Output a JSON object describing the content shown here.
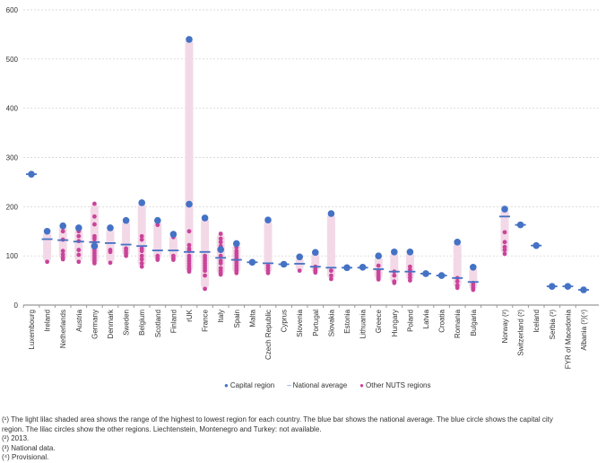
{
  "chart_data": {
    "type": "scatter",
    "title": "",
    "ylim": [
      0,
      600
    ],
    "yticks": [
      0,
      100,
      200,
      300,
      400,
      500,
      600
    ],
    "grid": true,
    "legend_position": "bottom",
    "colors": {
      "capital": "#4472c4",
      "national": "#4472c4",
      "other": "#c9449a",
      "range": "#f3d9e7"
    },
    "legend": {
      "capital": "Capital region",
      "national": "National average",
      "other": "Other NUTS regions"
    },
    "categories": [
      {
        "name": "Luxembourg",
        "capital": [
          266
        ],
        "national": 266,
        "other": []
      },
      {
        "name": "Ireland",
        "capital": [
          150
        ],
        "national": 134,
        "other": [
          88
        ]
      },
      {
        "name": "Netherlands",
        "capital": [
          161
        ],
        "national": 132,
        "other": [
          158,
          150,
          133,
          110,
          103,
          97,
          93
        ]
      },
      {
        "name": "Austria",
        "capital": [
          157
        ],
        "national": 129,
        "other": [
          150,
          140,
          130,
          112,
          102,
          88
        ]
      },
      {
        "name": "Germany",
        "capital": [
          120
        ],
        "national": 128,
        "other": [
          206,
          180,
          164,
          140,
          135,
          128,
          122,
          115,
          110,
          105,
          100,
          95,
          90,
          85
        ]
      },
      {
        "name": "Denmark",
        "capital": [
          157
        ],
        "national": 126,
        "other": [
          112,
          108,
          86
        ]
      },
      {
        "name": "Sweden",
        "capital": [
          172
        ],
        "national": 123,
        "other": [
          115,
          110,
          105,
          100
        ]
      },
      {
        "name": "Belgium",
        "capital": [
          208
        ],
        "national": 120,
        "other": [
          140,
          133,
          115,
          110,
          100,
          93,
          85,
          78
        ]
      },
      {
        "name": "Scotland",
        "capital": [
          172
        ],
        "national": 111,
        "other": [
          163,
          100,
          95,
          92
        ]
      },
      {
        "name": "Finland",
        "capital": [
          144
        ],
        "national": 111,
        "other": [
          138,
          100,
          95,
          92
        ]
      },
      {
        "name": "rUK",
        "capital": [
          540,
          205
        ],
        "national": 108,
        "other": [
          150,
          122,
          115,
          110,
          100,
          95,
          90,
          85,
          80,
          75,
          72,
          68
        ]
      },
      {
        "name": "France",
        "capital": [
          177
        ],
        "national": 108,
        "other": [
          100,
          95,
          90,
          85,
          80,
          75,
          70,
          60,
          33
        ]
      },
      {
        "name": "Italy",
        "capital": [
          113
        ],
        "national": 96,
        "other": [
          145,
          135,
          128,
          120,
          110,
          100,
          90,
          85,
          75,
          70,
          65,
          62
        ]
      },
      {
        "name": "Spain",
        "capital": [
          125
        ],
        "national": 92,
        "other": [
          117,
          110,
          105,
          100,
          95,
          90,
          85,
          80,
          75,
          70,
          65
        ]
      },
      {
        "name": "Malta",
        "capital": [
          87
        ],
        "national": 87,
        "other": []
      },
      {
        "name": "Czech Republic",
        "capital": [
          173
        ],
        "national": 85,
        "other": [
          80,
          75,
          70,
          65
        ]
      },
      {
        "name": "Cyprus",
        "capital": [
          83
        ],
        "national": 83,
        "other": []
      },
      {
        "name": "Slovenia",
        "capital": [
          98
        ],
        "national": 84,
        "other": [
          70
        ]
      },
      {
        "name": "Portugal",
        "capital": [
          107
        ],
        "national": 78,
        "other": [
          78,
          75,
          70,
          66
        ]
      },
      {
        "name": "Slovakia",
        "capital": [
          186
        ],
        "national": 76,
        "other": [
          70,
          60,
          53
        ]
      },
      {
        "name": "Estonia",
        "capital": [
          76
        ],
        "national": 76,
        "other": []
      },
      {
        "name": "Lithuania",
        "capital": [
          77
        ],
        "national": 76,
        "other": []
      },
      {
        "name": "Greece",
        "capital": [
          100
        ],
        "national": 73,
        "other": [
          80,
          70,
          65,
          60,
          55,
          52
        ]
      },
      {
        "name": "Hungary",
        "capital": [
          108
        ],
        "national": 68,
        "other": [
          68,
          60,
          48,
          45
        ]
      },
      {
        "name": "Poland",
        "capital": [
          108
        ],
        "national": 68,
        "other": [
          78,
          72,
          68,
          62,
          56,
          50
        ]
      },
      {
        "name": "Latvia",
        "capital": [
          64
        ],
        "national": 64,
        "other": []
      },
      {
        "name": "Croatia",
        "capital": [
          60
        ],
        "national": 60,
        "other": [
          59
        ]
      },
      {
        "name": "Romania",
        "capital": [
          128
        ],
        "national": 55,
        "other": [
          55,
          48,
          40,
          35
        ]
      },
      {
        "name": "Bulgaria",
        "capital": [
          77
        ],
        "national": 47,
        "other": [
          45,
          40,
          35,
          31
        ]
      },
      {
        "name": "",
        "capital": [],
        "national": null,
        "other": []
      },
      {
        "name": "Norway (²)",
        "capital": [
          195
        ],
        "national": 180,
        "other": [
          148,
          128,
          118,
          112,
          104
        ]
      },
      {
        "name": "Switzerland (²)",
        "capital": [
          163
        ],
        "national": 163,
        "other": []
      },
      {
        "name": "Iceland",
        "capital": [
          121
        ],
        "national": 121,
        "other": []
      },
      {
        "name": "Serbia (³)",
        "capital": [
          38
        ],
        "national": 38,
        "other": []
      },
      {
        "name": "FYR of Macedonia",
        "capital": [
          38
        ],
        "national": 38,
        "other": []
      },
      {
        "name": "Albania (³)(⁴)",
        "capital": [
          31
        ],
        "national": 31,
        "other": []
      }
    ]
  },
  "notes": [
    "(¹) The light lilac shaded area shows the range of the highest to lowest region for each country. The blue bar shows the national average. The blue circle shows the capital city region. The lilac circles show the other regions. Liechtenstein, Montenegro and Turkey: not available.",
    "(²) 2013.",
    "(³) National data.",
    "(⁴) Provisional."
  ]
}
